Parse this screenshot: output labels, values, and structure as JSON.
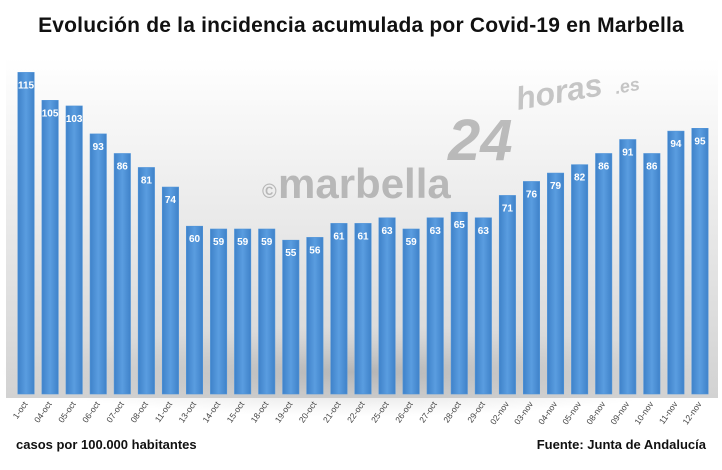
{
  "chart_data": {
    "type": "bar",
    "title": "Evolución de la incidencia acumulada por Covid-19 en Marbella",
    "xlabel": "",
    "ylabel": "",
    "categories": [
      "1-oct",
      "04-oct",
      "05-oct",
      "06-oct",
      "07-oct",
      "08-oct",
      "11-oct",
      "13-oct",
      "14-oct",
      "15-oct",
      "18-oct",
      "19-oct",
      "20-oct",
      "21-oct",
      "22-oct",
      "25-oct",
      "26-oct",
      "27-oct",
      "28-oct",
      "29-oct",
      "02-nov",
      "03-nov",
      "04-nov",
      "05-nov",
      "08-nov",
      "09-nov",
      "10-nov",
      "11-nov",
      "12-nov"
    ],
    "values": [
      115,
      105,
      103,
      93,
      86,
      81,
      74,
      60,
      59,
      59,
      59,
      55,
      56,
      61,
      61,
      63,
      59,
      63,
      65,
      63,
      71,
      76,
      79,
      82,
      86,
      91,
      86,
      94,
      95
    ],
    "ylim": [
      0,
      118
    ],
    "grid": false,
    "legend": "none",
    "bar_color": "#4f93d8",
    "value_label_color": "#ffffff"
  },
  "footer": {
    "left": "casos por 100.000 habitantes",
    "right": "Fuente: Junta de Andalucía"
  },
  "watermark": {
    "copyright": "©",
    "name": "marbella",
    "number": "24",
    "suffix": "horas",
    "domain": ".es"
  }
}
